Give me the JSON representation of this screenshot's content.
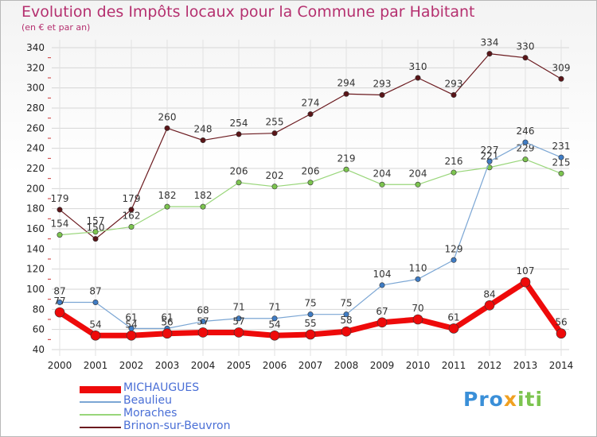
{
  "title": "Evolution des Impôts locaux pour la Commune par Habitant",
  "subtitle": "(en € et par an)",
  "logo": {
    "p": "Pro",
    "x": "x",
    "i": "iti"
  },
  "chart_data": {
    "type": "line",
    "x": [
      "2000",
      "2001",
      "2002",
      "2003",
      "2004",
      "2005",
      "2006",
      "2007",
      "2008",
      "2009",
      "2010",
      "2011",
      "2012",
      "2013",
      "2014"
    ],
    "ylim": [
      40,
      340
    ],
    "yticks": [
      40,
      60,
      80,
      100,
      120,
      140,
      160,
      180,
      200,
      220,
      240,
      260,
      280,
      300,
      320,
      340
    ],
    "grid": true,
    "legend_position": "bottom-left",
    "series": [
      {
        "name": "Brinon-sur-Beuvron",
        "color": "#6b1a1f",
        "marker_color": "#5a1518",
        "width": 1.2,
        "values": [
          179,
          150,
          179,
          260,
          248,
          254,
          255,
          274,
          294,
          293,
          310,
          293,
          334,
          330,
          309
        ]
      },
      {
        "name": "Moraches",
        "color": "#99d67a",
        "marker_color": "#7cc44f",
        "width": 1.2,
        "values": [
          154,
          157,
          162,
          182,
          182,
          206,
          202,
          206,
          219,
          204,
          204,
          216,
          221,
          229,
          215
        ]
      },
      {
        "name": "Beaulieu",
        "color": "#7ba6d4",
        "marker_color": "#3f7cc4",
        "width": 1.2,
        "values": [
          87,
          87,
          61,
          61,
          68,
          71,
          71,
          75,
          75,
          104,
          110,
          129,
          227,
          246,
          231
        ]
      },
      {
        "name": "MICHAUGUES",
        "color": "#ee0a0a",
        "marker_color": "#ee0a0a",
        "width": 7,
        "values": [
          77,
          54,
          54,
          56,
          57,
          57,
          54,
          55,
          58,
          67,
          70,
          61,
          84,
          107,
          56
        ]
      }
    ]
  }
}
